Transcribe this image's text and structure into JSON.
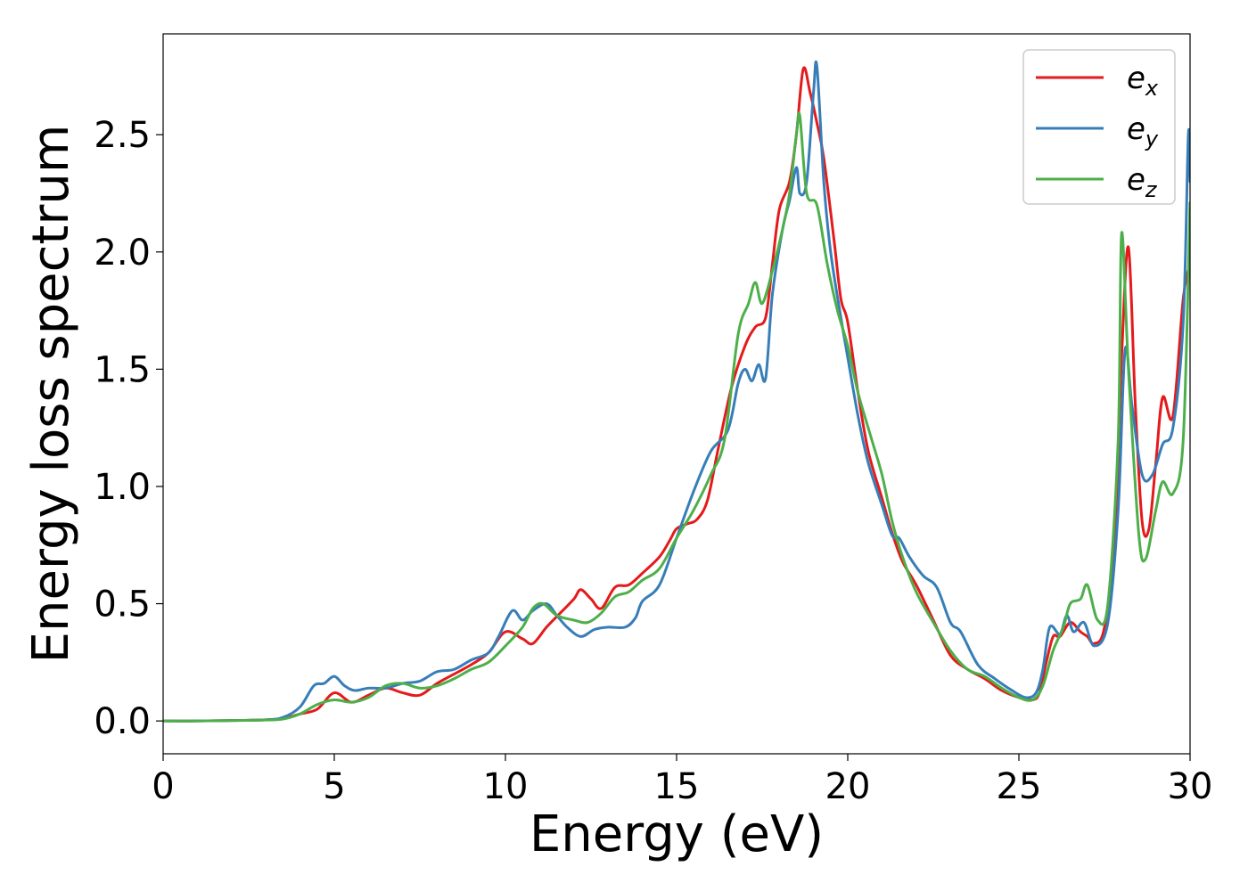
{
  "chart_data": {
    "type": "line",
    "title": "",
    "xlabel": "Energy (eV)",
    "ylabel": "Energy loss spectrum",
    "xlim": [
      0,
      30
    ],
    "ylim": [
      -0.14,
      2.93
    ],
    "xticks": [
      0,
      5,
      10,
      15,
      20,
      25,
      30
    ],
    "xtick_labels": [
      "0",
      "5",
      "10",
      "15",
      "20",
      "25",
      "30"
    ],
    "yticks": [
      0.0,
      0.5,
      1.0,
      1.5,
      2.0,
      2.5
    ],
    "ytick_labels": [
      "0.0",
      "0.5",
      "1.0",
      "1.5",
      "2.0",
      "2.5"
    ],
    "grid": false,
    "legend_position": "top-right",
    "series": [
      {
        "name": "e",
        "subscript": "x",
        "color": "#e41a1c",
        "points": [
          [
            0,
            0
          ],
          [
            1,
            0
          ],
          [
            2,
            0.002
          ],
          [
            3,
            0.005
          ],
          [
            3.5,
            0.01
          ],
          [
            4,
            0.03
          ],
          [
            4.5,
            0.05
          ],
          [
            5.0,
            0.12
          ],
          [
            5.5,
            0.08
          ],
          [
            6,
            0.11
          ],
          [
            6.5,
            0.14
          ],
          [
            7,
            0.12
          ],
          [
            7.5,
            0.11
          ],
          [
            8,
            0.16
          ],
          [
            8.5,
            0.2
          ],
          [
            9,
            0.24
          ],
          [
            9.5,
            0.29
          ],
          [
            10,
            0.38
          ],
          [
            10.5,
            0.35
          ],
          [
            10.8,
            0.33
          ],
          [
            11.2,
            0.4
          ],
          [
            11.6,
            0.46
          ],
          [
            12,
            0.52
          ],
          [
            12.2,
            0.56
          ],
          [
            12.5,
            0.52
          ],
          [
            12.8,
            0.48
          ],
          [
            13.2,
            0.57
          ],
          [
            13.6,
            0.58
          ],
          [
            14,
            0.63
          ],
          [
            14.5,
            0.7
          ],
          [
            14.8,
            0.77
          ],
          [
            15,
            0.82
          ],
          [
            15.3,
            0.84
          ],
          [
            15.6,
            0.86
          ],
          [
            15.9,
            0.94
          ],
          [
            16.2,
            1.15
          ],
          [
            16.6,
            1.42
          ],
          [
            17,
            1.6
          ],
          [
            17.3,
            1.68
          ],
          [
            17.6,
            1.72
          ],
          [
            17.8,
            1.95
          ],
          [
            18,
            2.18
          ],
          [
            18.3,
            2.3
          ],
          [
            18.5,
            2.5
          ],
          [
            18.7,
            2.78
          ],
          [
            18.9,
            2.68
          ],
          [
            19.1,
            2.55
          ],
          [
            19.3,
            2.4
          ],
          [
            19.6,
            2.05
          ],
          [
            19.8,
            1.8
          ],
          [
            20,
            1.7
          ],
          [
            20.3,
            1.4
          ],
          [
            20.6,
            1.15
          ],
          [
            21,
            0.95
          ],
          [
            21.3,
            0.8
          ],
          [
            21.6,
            0.68
          ],
          [
            22,
            0.58
          ],
          [
            22.5,
            0.43
          ],
          [
            23,
            0.28
          ],
          [
            23.5,
            0.22
          ],
          [
            24,
            0.18
          ],
          [
            24.5,
            0.13
          ],
          [
            25,
            0.1
          ],
          [
            25.4,
            0.09
          ],
          [
            25.6,
            0.12
          ],
          [
            25.8,
            0.25
          ],
          [
            26,
            0.36
          ],
          [
            26.2,
            0.36
          ],
          [
            26.5,
            0.42
          ],
          [
            26.8,
            0.38
          ],
          [
            27,
            0.36
          ],
          [
            27.2,
            0.33
          ],
          [
            27.5,
            0.4
          ],
          [
            27.8,
            0.8
          ],
          [
            28.0,
            1.55
          ],
          [
            28.2,
            2.02
          ],
          [
            28.4,
            1.35
          ],
          [
            28.6,
            0.85
          ],
          [
            28.8,
            0.82
          ],
          [
            29.0,
            1.1
          ],
          [
            29.2,
            1.38
          ],
          [
            29.5,
            1.3
          ],
          [
            29.8,
            1.8
          ],
          [
            30,
            1.95
          ]
        ]
      },
      {
        "name": "e",
        "subscript": "y",
        "color": "#377eb8",
        "points": [
          [
            0,
            0
          ],
          [
            1,
            0
          ],
          [
            2,
            0.002
          ],
          [
            3,
            0.005
          ],
          [
            3.5,
            0.015
          ],
          [
            4,
            0.06
          ],
          [
            4.4,
            0.15
          ],
          [
            4.7,
            0.16
          ],
          [
            5.0,
            0.19
          ],
          [
            5.3,
            0.15
          ],
          [
            5.6,
            0.13
          ],
          [
            6,
            0.14
          ],
          [
            6.5,
            0.14
          ],
          [
            7,
            0.16
          ],
          [
            7.5,
            0.17
          ],
          [
            8,
            0.21
          ],
          [
            8.5,
            0.22
          ],
          [
            9,
            0.26
          ],
          [
            9.5,
            0.29
          ],
          [
            9.8,
            0.36
          ],
          [
            10.2,
            0.47
          ],
          [
            10.5,
            0.43
          ],
          [
            10.8,
            0.47
          ],
          [
            11.2,
            0.5
          ],
          [
            11.5,
            0.45
          ],
          [
            11.8,
            0.4
          ],
          [
            12.2,
            0.36
          ],
          [
            12.6,
            0.39
          ],
          [
            13,
            0.4
          ],
          [
            13.5,
            0.4
          ],
          [
            13.8,
            0.44
          ],
          [
            14,
            0.51
          ],
          [
            14.5,
            0.58
          ],
          [
            15,
            0.78
          ],
          [
            15.5,
            0.98
          ],
          [
            16,
            1.15
          ],
          [
            16.5,
            1.24
          ],
          [
            16.8,
            1.44
          ],
          [
            17,
            1.5
          ],
          [
            17.2,
            1.45
          ],
          [
            17.4,
            1.52
          ],
          [
            17.6,
            1.46
          ],
          [
            17.8,
            1.82
          ],
          [
            18.1,
            2.1
          ],
          [
            18.3,
            2.22
          ],
          [
            18.5,
            2.36
          ],
          [
            18.6,
            2.25
          ],
          [
            18.8,
            2.3
          ],
          [
            19.0,
            2.68
          ],
          [
            19.1,
            2.79
          ],
          [
            19.3,
            2.3
          ],
          [
            19.5,
            2.0
          ],
          [
            19.8,
            1.72
          ],
          [
            20,
            1.55
          ],
          [
            20.3,
            1.3
          ],
          [
            20.6,
            1.1
          ],
          [
            21,
            0.92
          ],
          [
            21.3,
            0.79
          ],
          [
            21.5,
            0.78
          ],
          [
            21.8,
            0.7
          ],
          [
            22.2,
            0.62
          ],
          [
            22.6,
            0.57
          ],
          [
            23,
            0.42
          ],
          [
            23.3,
            0.38
          ],
          [
            23.8,
            0.24
          ],
          [
            24.3,
            0.18
          ],
          [
            24.8,
            0.13
          ],
          [
            25.2,
            0.1
          ],
          [
            25.5,
            0.12
          ],
          [
            25.7,
            0.22
          ],
          [
            25.9,
            0.4
          ],
          [
            26.2,
            0.37
          ],
          [
            26.4,
            0.45
          ],
          [
            26.6,
            0.38
          ],
          [
            26.9,
            0.42
          ],
          [
            27.2,
            0.32
          ],
          [
            27.6,
            0.42
          ],
          [
            27.9,
            0.9
          ],
          [
            28.1,
            1.58
          ],
          [
            28.3,
            1.35
          ],
          [
            28.6,
            1.05
          ],
          [
            28.9,
            1.05
          ],
          [
            29.2,
            1.18
          ],
          [
            29.5,
            1.25
          ],
          [
            29.8,
            1.7
          ],
          [
            29.95,
            2.5
          ],
          [
            30,
            2.3
          ]
        ]
      },
      {
        "name": "e",
        "subscript": "z",
        "color": "#4daf4a",
        "points": [
          [
            0,
            0
          ],
          [
            1,
            0
          ],
          [
            2,
            0.002
          ],
          [
            3,
            0.004
          ],
          [
            3.5,
            0.008
          ],
          [
            4,
            0.03
          ],
          [
            4.5,
            0.07
          ],
          [
            5,
            0.09
          ],
          [
            5.5,
            0.08
          ],
          [
            6,
            0.1
          ],
          [
            6.5,
            0.15
          ],
          [
            7,
            0.16
          ],
          [
            7.5,
            0.14
          ],
          [
            8,
            0.15
          ],
          [
            8.5,
            0.18
          ],
          [
            9,
            0.22
          ],
          [
            9.5,
            0.25
          ],
          [
            10,
            0.32
          ],
          [
            10.5,
            0.4
          ],
          [
            10.8,
            0.48
          ],
          [
            11.1,
            0.5
          ],
          [
            11.5,
            0.45
          ],
          [
            12,
            0.43
          ],
          [
            12.4,
            0.42
          ],
          [
            12.8,
            0.46
          ],
          [
            13.2,
            0.53
          ],
          [
            13.6,
            0.55
          ],
          [
            14,
            0.6
          ],
          [
            14.5,
            0.65
          ],
          [
            15,
            0.78
          ],
          [
            15.5,
            0.9
          ],
          [
            16,
            1.05
          ],
          [
            16.4,
            1.2
          ],
          [
            16.8,
            1.65
          ],
          [
            17.1,
            1.78
          ],
          [
            17.3,
            1.87
          ],
          [
            17.5,
            1.78
          ],
          [
            17.8,
            1.92
          ],
          [
            18.1,
            2.1
          ],
          [
            18.3,
            2.25
          ],
          [
            18.5,
            2.5
          ],
          [
            18.6,
            2.58
          ],
          [
            18.8,
            2.25
          ],
          [
            19.1,
            2.2
          ],
          [
            19.4,
            1.95
          ],
          [
            19.7,
            1.75
          ],
          [
            20,
            1.6
          ],
          [
            20.3,
            1.4
          ],
          [
            20.7,
            1.2
          ],
          [
            21,
            1.05
          ],
          [
            21.3,
            0.85
          ],
          [
            21.6,
            0.7
          ],
          [
            22,
            0.55
          ],
          [
            22.5,
            0.42
          ],
          [
            23,
            0.3
          ],
          [
            23.5,
            0.22
          ],
          [
            24,
            0.19
          ],
          [
            24.5,
            0.14
          ],
          [
            25,
            0.1
          ],
          [
            25.4,
            0.09
          ],
          [
            25.7,
            0.15
          ],
          [
            26,
            0.3
          ],
          [
            26.3,
            0.4
          ],
          [
            26.5,
            0.5
          ],
          [
            26.8,
            0.52
          ],
          [
            27,
            0.58
          ],
          [
            27.3,
            0.43
          ],
          [
            27.6,
            0.5
          ],
          [
            27.9,
            1.2
          ],
          [
            28.0,
            2.08
          ],
          [
            28.2,
            1.5
          ],
          [
            28.5,
            0.8
          ],
          [
            28.7,
            0.69
          ],
          [
            29.0,
            0.9
          ],
          [
            29.2,
            1.02
          ],
          [
            29.5,
            0.97
          ],
          [
            29.8,
            1.2
          ],
          [
            30,
            2.21
          ]
        ]
      }
    ]
  }
}
